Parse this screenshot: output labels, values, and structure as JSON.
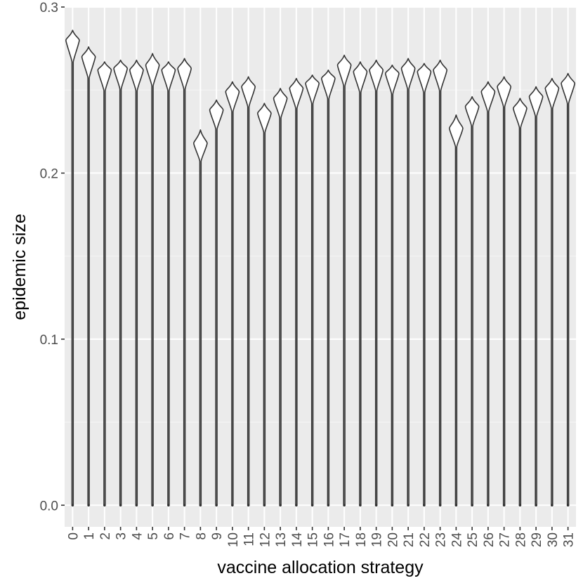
{
  "chart_data": {
    "type": "violin",
    "xlabel": "vaccine allocation strategy",
    "ylabel": "epidemic size",
    "ylim": [
      -0.013,
      0.3
    ],
    "yticks": [
      {
        "value": 0.0,
        "label": "0.0"
      },
      {
        "value": 0.1,
        "label": "0.1"
      },
      {
        "value": 0.2,
        "label": "0.2"
      },
      {
        "value": 0.3,
        "label": "0.3"
      }
    ],
    "grid": true,
    "legend": "none",
    "categories": [
      "0",
      "1",
      "2",
      "3",
      "4",
      "5",
      "6",
      "7",
      "8",
      "9",
      "10",
      "11",
      "12",
      "13",
      "14",
      "15",
      "16",
      "17",
      "18",
      "19",
      "20",
      "21",
      "22",
      "23",
      "24",
      "25",
      "26",
      "27",
      "28",
      "29",
      "30",
      "31"
    ],
    "distributions": [
      {
        "category": "0",
        "min": 0.0,
        "mode": 0.28,
        "max": 0.286
      },
      {
        "category": "1",
        "min": 0.0,
        "mode": 0.27,
        "max": 0.276
      },
      {
        "category": "2",
        "min": 0.0,
        "mode": 0.262,
        "max": 0.267
      },
      {
        "category": "3",
        "min": 0.0,
        "mode": 0.263,
        "max": 0.268
      },
      {
        "category": "4",
        "min": 0.0,
        "mode": 0.262,
        "max": 0.268
      },
      {
        "category": "5",
        "min": 0.0,
        "mode": 0.265,
        "max": 0.272
      },
      {
        "category": "6",
        "min": 0.0,
        "mode": 0.262,
        "max": 0.267
      },
      {
        "category": "7",
        "min": 0.0,
        "mode": 0.263,
        "max": 0.269
      },
      {
        "category": "8",
        "min": 0.0,
        "mode": 0.218,
        "max": 0.226
      },
      {
        "category": "9",
        "min": 0.0,
        "mode": 0.238,
        "max": 0.244
      },
      {
        "category": "10",
        "min": 0.0,
        "mode": 0.249,
        "max": 0.255
      },
      {
        "category": "11",
        "min": 0.0,
        "mode": 0.252,
        "max": 0.258
      },
      {
        "category": "12",
        "min": 0.0,
        "mode": 0.236,
        "max": 0.242
      },
      {
        "category": "13",
        "min": 0.0,
        "mode": 0.245,
        "max": 0.251
      },
      {
        "category": "14",
        "min": 0.0,
        "mode": 0.251,
        "max": 0.257
      },
      {
        "category": "15",
        "min": 0.0,
        "mode": 0.254,
        "max": 0.259
      },
      {
        "category": "16",
        "min": 0.0,
        "mode": 0.257,
        "max": 0.262
      },
      {
        "category": "17",
        "min": 0.0,
        "mode": 0.265,
        "max": 0.271
      },
      {
        "category": "18",
        "min": 0.0,
        "mode": 0.261,
        "max": 0.267
      },
      {
        "category": "19",
        "min": 0.0,
        "mode": 0.262,
        "max": 0.268
      },
      {
        "category": "20",
        "min": 0.0,
        "mode": 0.26,
        "max": 0.265
      },
      {
        "category": "21",
        "min": 0.0,
        "mode": 0.263,
        "max": 0.269
      },
      {
        "category": "22",
        "min": 0.0,
        "mode": 0.261,
        "max": 0.266
      },
      {
        "category": "23",
        "min": 0.0,
        "mode": 0.262,
        "max": 0.268
      },
      {
        "category": "24",
        "min": 0.0,
        "mode": 0.227,
        "max": 0.235
      },
      {
        "category": "25",
        "min": 0.0,
        "mode": 0.24,
        "max": 0.246
      },
      {
        "category": "26",
        "min": 0.0,
        "mode": 0.249,
        "max": 0.255
      },
      {
        "category": "27",
        "min": 0.0,
        "mode": 0.252,
        "max": 0.258
      },
      {
        "category": "28",
        "min": 0.0,
        "mode": 0.239,
        "max": 0.245
      },
      {
        "category": "29",
        "min": 0.0,
        "mode": 0.246,
        "max": 0.252
      },
      {
        "category": "30",
        "min": 0.0,
        "mode": 0.251,
        "max": 0.257
      },
      {
        "category": "31",
        "min": 0.0,
        "mode": 0.254,
        "max": 0.26
      }
    ],
    "colors": {
      "panel": "#ebebeb",
      "grid_major": "#ffffff",
      "grid_minor": "#f5f5f5",
      "violin_fill": "#ffffff",
      "violin_stroke": "#333333",
      "tick_text": "#4d4d4d",
      "tick_mark": "#333333"
    }
  }
}
